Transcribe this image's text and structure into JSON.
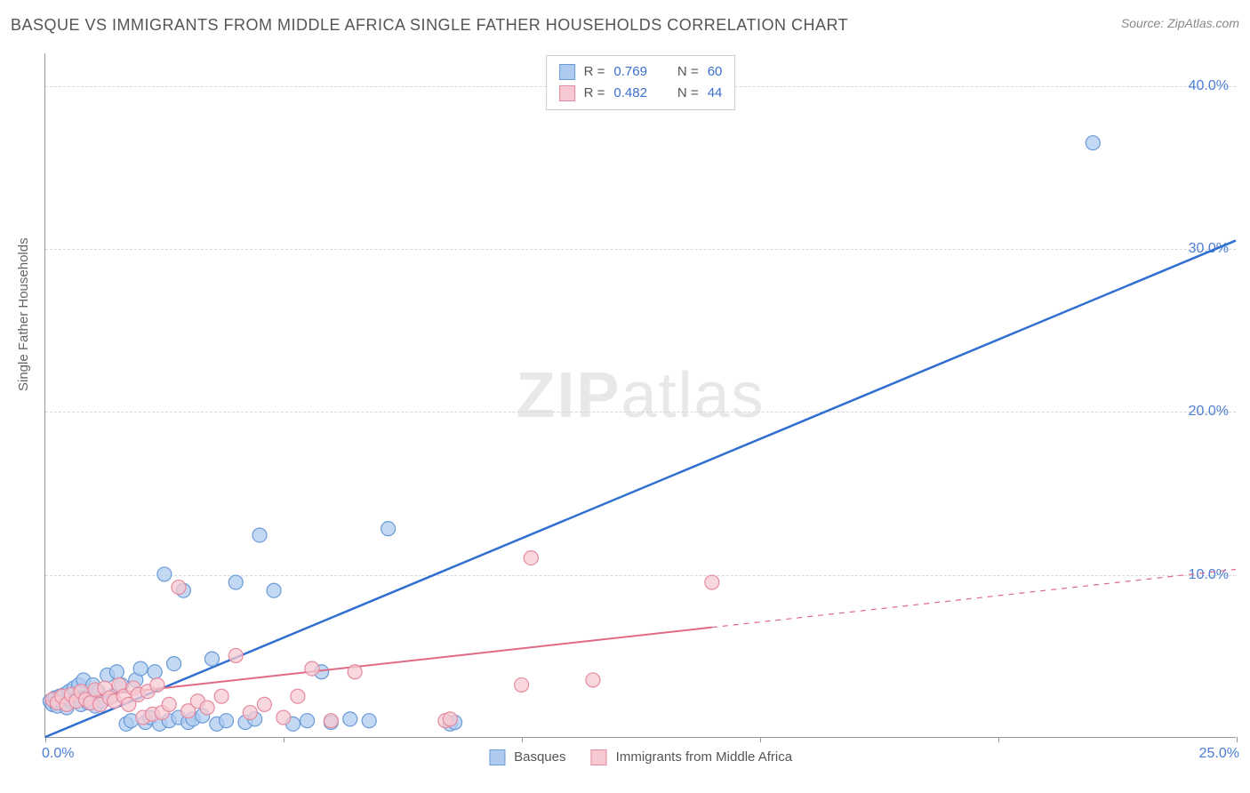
{
  "title": "BASQUE VS IMMIGRANTS FROM MIDDLE AFRICA SINGLE FATHER HOUSEHOLDS CORRELATION CHART",
  "source": "Source: ZipAtlas.com",
  "ylabel": "Single Father Households",
  "watermark_a": "ZIP",
  "watermark_b": "atlas",
  "chart": {
    "type": "scatter",
    "xlim": [
      0,
      25
    ],
    "ylim": [
      0,
      42
    ],
    "yticks": [
      10,
      20,
      30,
      40
    ],
    "ytick_labels": [
      "10.0%",
      "20.0%",
      "30.0%",
      "40.0%"
    ],
    "xticks": [
      0,
      5,
      10,
      15,
      20,
      25
    ],
    "xtick_start_label": "0.0%",
    "xtick_end_label": "25.0%",
    "grid_color": "#d8d8d8",
    "axis_color": "#999999",
    "tick_label_color": "#4a7dd6",
    "background_color": "#ffffff",
    "series": [
      {
        "name": "Basques",
        "marker_fill": "#aecbef",
        "marker_stroke": "#6a9ad8",
        "marker_r": 8,
        "line_color": "#2f6fd0",
        "line_width": 2.5,
        "r_value": "0.769",
        "n_value": "60",
        "regression": {
          "x1": 0,
          "y1": 0,
          "x2": 25,
          "y2": 30.5
        },
        "regression_dash_after_x": null,
        "points": [
          [
            0.1,
            2.2
          ],
          [
            0.15,
            2.0
          ],
          [
            0.2,
            2.4
          ],
          [
            0.25,
            1.9
          ],
          [
            0.3,
            2.5
          ],
          [
            0.35,
            2.1
          ],
          [
            0.4,
            2.6
          ],
          [
            0.45,
            1.8
          ],
          [
            0.5,
            2.8
          ],
          [
            0.55,
            2.2
          ],
          [
            0.6,
            3.0
          ],
          [
            0.65,
            2.3
          ],
          [
            0.7,
            3.2
          ],
          [
            0.75,
            2.0
          ],
          [
            0.8,
            3.5
          ],
          [
            0.85,
            2.4
          ],
          [
            0.9,
            2.1
          ],
          [
            0.95,
            2.6
          ],
          [
            1.0,
            3.2
          ],
          [
            1.05,
            1.9
          ],
          [
            1.1,
            2.8
          ],
          [
            1.2,
            2.2
          ],
          [
            1.3,
            3.8
          ],
          [
            1.4,
            2.5
          ],
          [
            1.5,
            4.0
          ],
          [
            1.6,
            3.2
          ],
          [
            1.7,
            0.8
          ],
          [
            1.8,
            1.0
          ],
          [
            1.9,
            3.5
          ],
          [
            2.0,
            4.2
          ],
          [
            2.1,
            0.9
          ],
          [
            2.2,
            1.2
          ],
          [
            2.3,
            4.0
          ],
          [
            2.4,
            0.8
          ],
          [
            2.5,
            10.0
          ],
          [
            2.6,
            1.0
          ],
          [
            2.7,
            4.5
          ],
          [
            2.8,
            1.2
          ],
          [
            2.9,
            9.0
          ],
          [
            3.0,
            0.9
          ],
          [
            3.1,
            1.1
          ],
          [
            3.3,
            1.3
          ],
          [
            3.5,
            4.8
          ],
          [
            3.6,
            0.8
          ],
          [
            3.8,
            1.0
          ],
          [
            4.0,
            9.5
          ],
          [
            4.2,
            0.9
          ],
          [
            4.4,
            1.1
          ],
          [
            4.5,
            12.4
          ],
          [
            4.8,
            9.0
          ],
          [
            5.2,
            0.8
          ],
          [
            5.5,
            1.0
          ],
          [
            5.8,
            4.0
          ],
          [
            6.0,
            0.9
          ],
          [
            6.4,
            1.1
          ],
          [
            6.8,
            1.0
          ],
          [
            7.2,
            12.8
          ],
          [
            8.5,
            0.8
          ],
          [
            8.6,
            0.9
          ],
          [
            22.0,
            36.5
          ]
        ]
      },
      {
        "name": "Immigrants from Middle Africa",
        "marker_fill": "#f6c9d2",
        "marker_stroke": "#e58aa0",
        "marker_r": 8,
        "line_color": "#e06a85",
        "line_width": 2,
        "r_value": "0.482",
        "n_value": "44",
        "regression": {
          "x1": 0,
          "y1": 2.2,
          "x2": 25,
          "y2": 10.3
        },
        "regression_dash_after_x": 14,
        "points": [
          [
            0.15,
            2.3
          ],
          [
            0.25,
            2.1
          ],
          [
            0.35,
            2.5
          ],
          [
            0.45,
            2.0
          ],
          [
            0.55,
            2.6
          ],
          [
            0.65,
            2.2
          ],
          [
            0.75,
            2.8
          ],
          [
            0.85,
            2.3
          ],
          [
            0.95,
            2.1
          ],
          [
            1.05,
            2.9
          ],
          [
            1.15,
            2.0
          ],
          [
            1.25,
            3.0
          ],
          [
            1.35,
            2.4
          ],
          [
            1.45,
            2.2
          ],
          [
            1.55,
            3.2
          ],
          [
            1.65,
            2.5
          ],
          [
            1.75,
            2.0
          ],
          [
            1.85,
            3.0
          ],
          [
            1.95,
            2.6
          ],
          [
            2.05,
            1.2
          ],
          [
            2.15,
            2.8
          ],
          [
            2.25,
            1.4
          ],
          [
            2.35,
            3.2
          ],
          [
            2.45,
            1.5
          ],
          [
            2.6,
            2.0
          ],
          [
            2.8,
            9.2
          ],
          [
            3.0,
            1.6
          ],
          [
            3.2,
            2.2
          ],
          [
            3.4,
            1.8
          ],
          [
            3.7,
            2.5
          ],
          [
            4.0,
            5.0
          ],
          [
            4.3,
            1.5
          ],
          [
            4.6,
            2.0
          ],
          [
            5.0,
            1.2
          ],
          [
            5.3,
            2.5
          ],
          [
            5.6,
            4.2
          ],
          [
            6.0,
            1.0
          ],
          [
            6.5,
            4.0
          ],
          [
            8.4,
            1.0
          ],
          [
            8.5,
            1.1
          ],
          [
            10.0,
            3.2
          ],
          [
            10.2,
            11.0
          ],
          [
            11.5,
            3.5
          ],
          [
            14.0,
            9.5
          ]
        ]
      }
    ]
  },
  "legend_top": [
    {
      "r_label": "R =",
      "n_label": "N ="
    }
  ],
  "legend_bottom_labels": [
    "Basques",
    "Immigrants from Middle Africa"
  ]
}
